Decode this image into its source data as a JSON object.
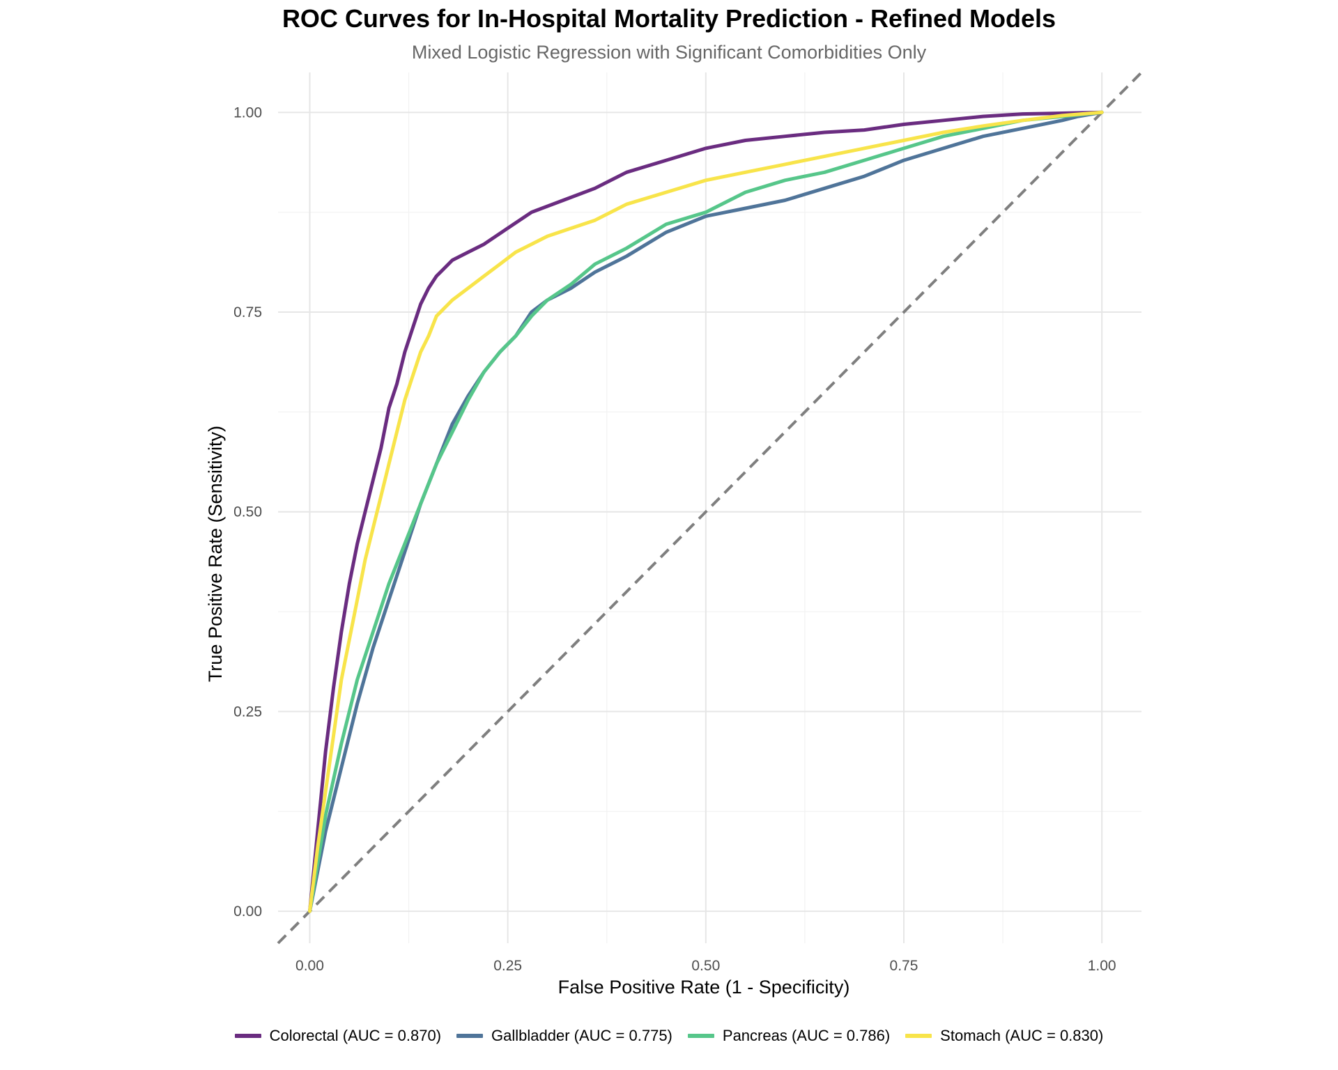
{
  "chart_data": {
    "type": "line",
    "title": "ROC Curves for In-Hospital Mortality Prediction - Refined Models",
    "subtitle": "Mixed Logistic Regression with Significant Comorbidities Only",
    "xlabel": "False Positive Rate (1 - Specificity)",
    "ylabel": "True Positive Rate (Sensitivity)",
    "xlim": [
      -0.04,
      1.05
    ],
    "ylim": [
      -0.04,
      1.05
    ],
    "x_ticks": [
      0,
      0.25,
      0.5,
      0.75,
      1
    ],
    "y_ticks": [
      0,
      0.25,
      0.5,
      0.75,
      1
    ],
    "x_tick_labels": [
      "0.00",
      "0.25",
      "0.50",
      "0.75",
      "1.00"
    ],
    "y_tick_labels": [
      "0.00",
      "0.25",
      "0.50",
      "0.75",
      "1.00"
    ],
    "grid": true,
    "legend_position": "bottom",
    "reference_line": {
      "x": [
        -0.04,
        1.05
      ],
      "y": [
        -0.04,
        1.05
      ],
      "color": "#7f7f7f",
      "style": "dashed"
    },
    "series": [
      {
        "name": "Colorectal (AUC = 0.870)",
        "color": "#6a2c80",
        "x": [
          0,
          0.01,
          0.02,
          0.03,
          0.04,
          0.05,
          0.06,
          0.07,
          0.08,
          0.09,
          0.1,
          0.11,
          0.12,
          0.13,
          0.14,
          0.15,
          0.16,
          0.17,
          0.18,
          0.2,
          0.22,
          0.25,
          0.28,
          0.32,
          0.36,
          0.4,
          0.45,
          0.5,
          0.55,
          0.6,
          0.65,
          0.7,
          0.75,
          0.8,
          0.85,
          0.9,
          0.95,
          1.0
        ],
        "y": [
          0,
          0.1,
          0.2,
          0.28,
          0.35,
          0.41,
          0.46,
          0.5,
          0.54,
          0.58,
          0.63,
          0.66,
          0.7,
          0.73,
          0.76,
          0.78,
          0.795,
          0.805,
          0.815,
          0.825,
          0.835,
          0.855,
          0.875,
          0.89,
          0.905,
          0.925,
          0.94,
          0.955,
          0.965,
          0.97,
          0.975,
          0.978,
          0.985,
          0.99,
          0.995,
          0.998,
          0.999,
          1.0
        ]
      },
      {
        "name": "Gallbladder (AUC = 0.775)",
        "color": "#4f7499",
        "x": [
          0,
          0.02,
          0.04,
          0.06,
          0.08,
          0.1,
          0.12,
          0.14,
          0.16,
          0.18,
          0.2,
          0.22,
          0.24,
          0.26,
          0.28,
          0.3,
          0.33,
          0.36,
          0.4,
          0.45,
          0.5,
          0.55,
          0.6,
          0.65,
          0.7,
          0.75,
          0.8,
          0.85,
          0.9,
          0.95,
          0.97,
          1.0
        ],
        "y": [
          0,
          0.1,
          0.18,
          0.26,
          0.33,
          0.39,
          0.45,
          0.51,
          0.56,
          0.61,
          0.645,
          0.675,
          0.7,
          0.72,
          0.75,
          0.765,
          0.78,
          0.8,
          0.82,
          0.85,
          0.87,
          0.88,
          0.89,
          0.905,
          0.92,
          0.94,
          0.955,
          0.97,
          0.98,
          0.99,
          0.995,
          1.0
        ]
      },
      {
        "name": "Pancreas (AUC = 0.786)",
        "color": "#56c68a",
        "x": [
          0,
          0.02,
          0.04,
          0.06,
          0.08,
          0.1,
          0.12,
          0.14,
          0.16,
          0.18,
          0.2,
          0.22,
          0.24,
          0.26,
          0.28,
          0.3,
          0.33,
          0.36,
          0.4,
          0.45,
          0.5,
          0.55,
          0.6,
          0.65,
          0.7,
          0.75,
          0.8,
          0.85,
          0.9,
          0.95,
          1.0
        ],
        "y": [
          0,
          0.12,
          0.21,
          0.29,
          0.35,
          0.41,
          0.46,
          0.51,
          0.56,
          0.6,
          0.64,
          0.675,
          0.7,
          0.72,
          0.745,
          0.765,
          0.785,
          0.81,
          0.83,
          0.86,
          0.875,
          0.9,
          0.915,
          0.925,
          0.94,
          0.955,
          0.97,
          0.98,
          0.99,
          0.995,
          1.0
        ]
      },
      {
        "name": "Stomach (AUC = 0.830)",
        "color": "#f8e44a",
        "x": [
          0,
          0.01,
          0.02,
          0.03,
          0.04,
          0.05,
          0.06,
          0.07,
          0.08,
          0.09,
          0.1,
          0.11,
          0.12,
          0.13,
          0.14,
          0.15,
          0.16,
          0.17,
          0.18,
          0.2,
          0.22,
          0.24,
          0.26,
          0.28,
          0.3,
          0.33,
          0.36,
          0.4,
          0.45,
          0.5,
          0.55,
          0.6,
          0.65,
          0.7,
          0.75,
          0.8,
          0.85,
          0.9,
          0.95,
          1.0
        ],
        "y": [
          0,
          0.08,
          0.15,
          0.22,
          0.29,
          0.34,
          0.39,
          0.44,
          0.48,
          0.52,
          0.56,
          0.6,
          0.64,
          0.67,
          0.7,
          0.72,
          0.745,
          0.755,
          0.765,
          0.78,
          0.795,
          0.81,
          0.825,
          0.835,
          0.845,
          0.855,
          0.865,
          0.885,
          0.9,
          0.915,
          0.925,
          0.935,
          0.945,
          0.955,
          0.965,
          0.975,
          0.983,
          0.99,
          0.996,
          1.0
        ]
      }
    ]
  }
}
